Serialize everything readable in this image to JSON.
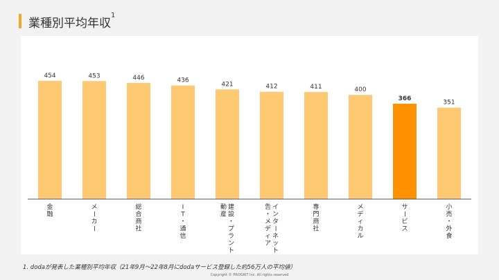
{
  "title": "業種別平均年収",
  "title_note_marker": "1",
  "footnote": "1. dodaが発表した業種別平均年収（21年9月～22年8月にdodaサービス登録した約56万人の平均値）",
  "copyright": "Copyright © PROGRIT Inc. All rights reserved",
  "chart_data": {
    "type": "bar",
    "categories": [
      "金融",
      "メーカー",
      "総合商社",
      "IT・通信",
      "建設・プラント・不動産",
      "インターネット・広告・メディア",
      "専門商社",
      "メディカル",
      "サービス",
      "小売・外食"
    ],
    "values": [
      454,
      453,
      446,
      436,
      421,
      412,
      411,
      400,
      366,
      351
    ],
    "highlight_index": 8,
    "colors": {
      "bar": "#ffc974",
      "highlight": "#ff9100",
      "axis": "#555555"
    },
    "ylim": [
      0,
      520
    ],
    "grid": false,
    "title": "",
    "xlabel": "",
    "ylabel": ""
  }
}
